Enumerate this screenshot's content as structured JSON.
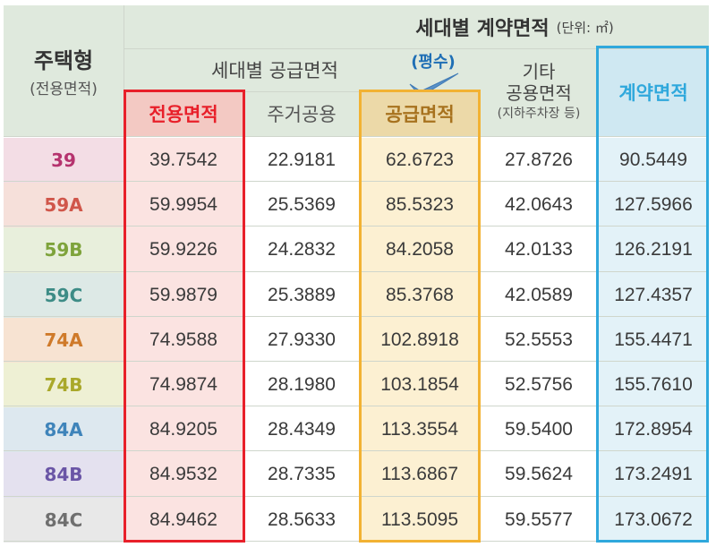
{
  "header": {
    "housing_type": "주택형",
    "housing_type_sub": "(전용면적)",
    "contract_area_title": "세대별 계약면적",
    "unit": "(단위: ㎡)",
    "supply_area_group": "세대별 공급면적",
    "pyeong_note": "(평수)",
    "other_line1": "기타",
    "other_line2": "공용면적",
    "other_line3": "(지하주차장 등)",
    "contract_area": "계약면적",
    "exclusive_area": "전용면적",
    "residential_common": "주거공용",
    "supply_area": "공급면적"
  },
  "rows": [
    {
      "type": "39",
      "exclusive": "39.7542",
      "residential_common": "22.9181",
      "supply": "62.6723",
      "other_common": "27.8726",
      "contract": "90.5449"
    },
    {
      "type": "59A",
      "exclusive": "59.9954",
      "residential_common": "25.5369",
      "supply": "85.5323",
      "other_common": "42.0643",
      "contract": "127.5966"
    },
    {
      "type": "59B",
      "exclusive": "59.9226",
      "residential_common": "24.2832",
      "supply": "84.2058",
      "other_common": "42.0133",
      "contract": "126.2191"
    },
    {
      "type": "59C",
      "exclusive": "59.9879",
      "residential_common": "25.3889",
      "supply": "85.3768",
      "other_common": "42.0589",
      "contract": "127.4357"
    },
    {
      "type": "74A",
      "exclusive": "74.9588",
      "residential_common": "27.9330",
      "supply": "102.8918",
      "other_common": "52.5553",
      "contract": "155.4471"
    },
    {
      "type": "74B",
      "exclusive": "74.9874",
      "residential_common": "28.1980",
      "supply": "103.1854",
      "other_common": "52.5756",
      "contract": "155.7610"
    },
    {
      "type": "84A",
      "exclusive": "84.9205",
      "residential_common": "28.4349",
      "supply": "113.3554",
      "other_common": "59.5400",
      "contract": "172.8954"
    },
    {
      "type": "84B",
      "exclusive": "84.9532",
      "residential_common": "28.7335",
      "supply": "113.6867",
      "other_common": "59.5624",
      "contract": "173.2491"
    },
    {
      "type": "84C",
      "exclusive": "84.9462",
      "residential_common": "28.5633",
      "supply": "113.5095",
      "other_common": "59.5577",
      "contract": "173.0672"
    }
  ],
  "type_colors": [
    "#b5336e",
    "#d0564a",
    "#7ea33b",
    "#3d8c86",
    "#cf7a2a",
    "#a9a82a",
    "#3f84ba",
    "#6a55a6",
    "#6f6f6f"
  ],
  "type_backgrounds": [
    "#f3dde5",
    "#f6e0da",
    "#e8efdc",
    "#dde9e6",
    "#f7e3d2",
    "#eef0d4",
    "#dde8ef",
    "#e4e1ef",
    "#e8e8e8"
  ],
  "colors": {
    "exclusive_highlight": "#e8202a",
    "supply_highlight": "#f2b233",
    "contract_highlight": "#2fa8dc",
    "pyeong_note": "#1f6fb5"
  }
}
